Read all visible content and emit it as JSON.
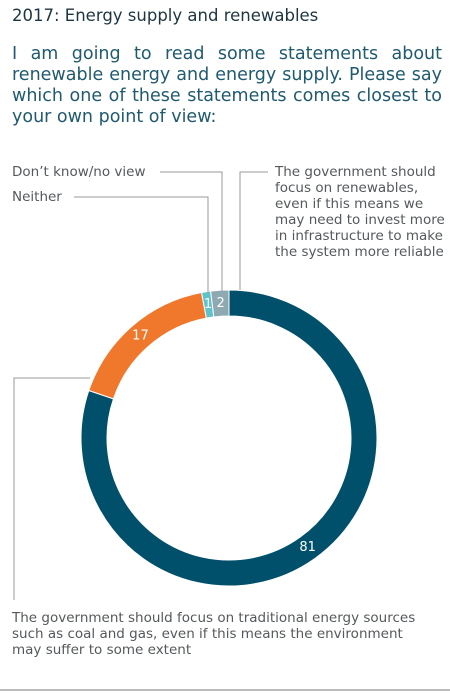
{
  "chart_data": {
    "type": "donut",
    "title": "2017: Energy supply and renewables",
    "subtitle": "I am going to read some statements about renewable energy and energy supply. Please say which one of these statements comes closest to your own point of view:",
    "categories": [
      "The government should focus on renewables, even if this means we may need to invest more in infrastructure to make the system more reliable",
      "The government should focus on traditional energy sources such as coal and gas, even if this means the environment may suffer to some extent",
      "Neither",
      "Don’t know/no view"
    ],
    "values": [
      81,
      17,
      1,
      2
    ],
    "colors": [
      "#00506b",
      "#f0782d",
      "#5fc3cd",
      "#8ea9b1"
    ]
  }
}
